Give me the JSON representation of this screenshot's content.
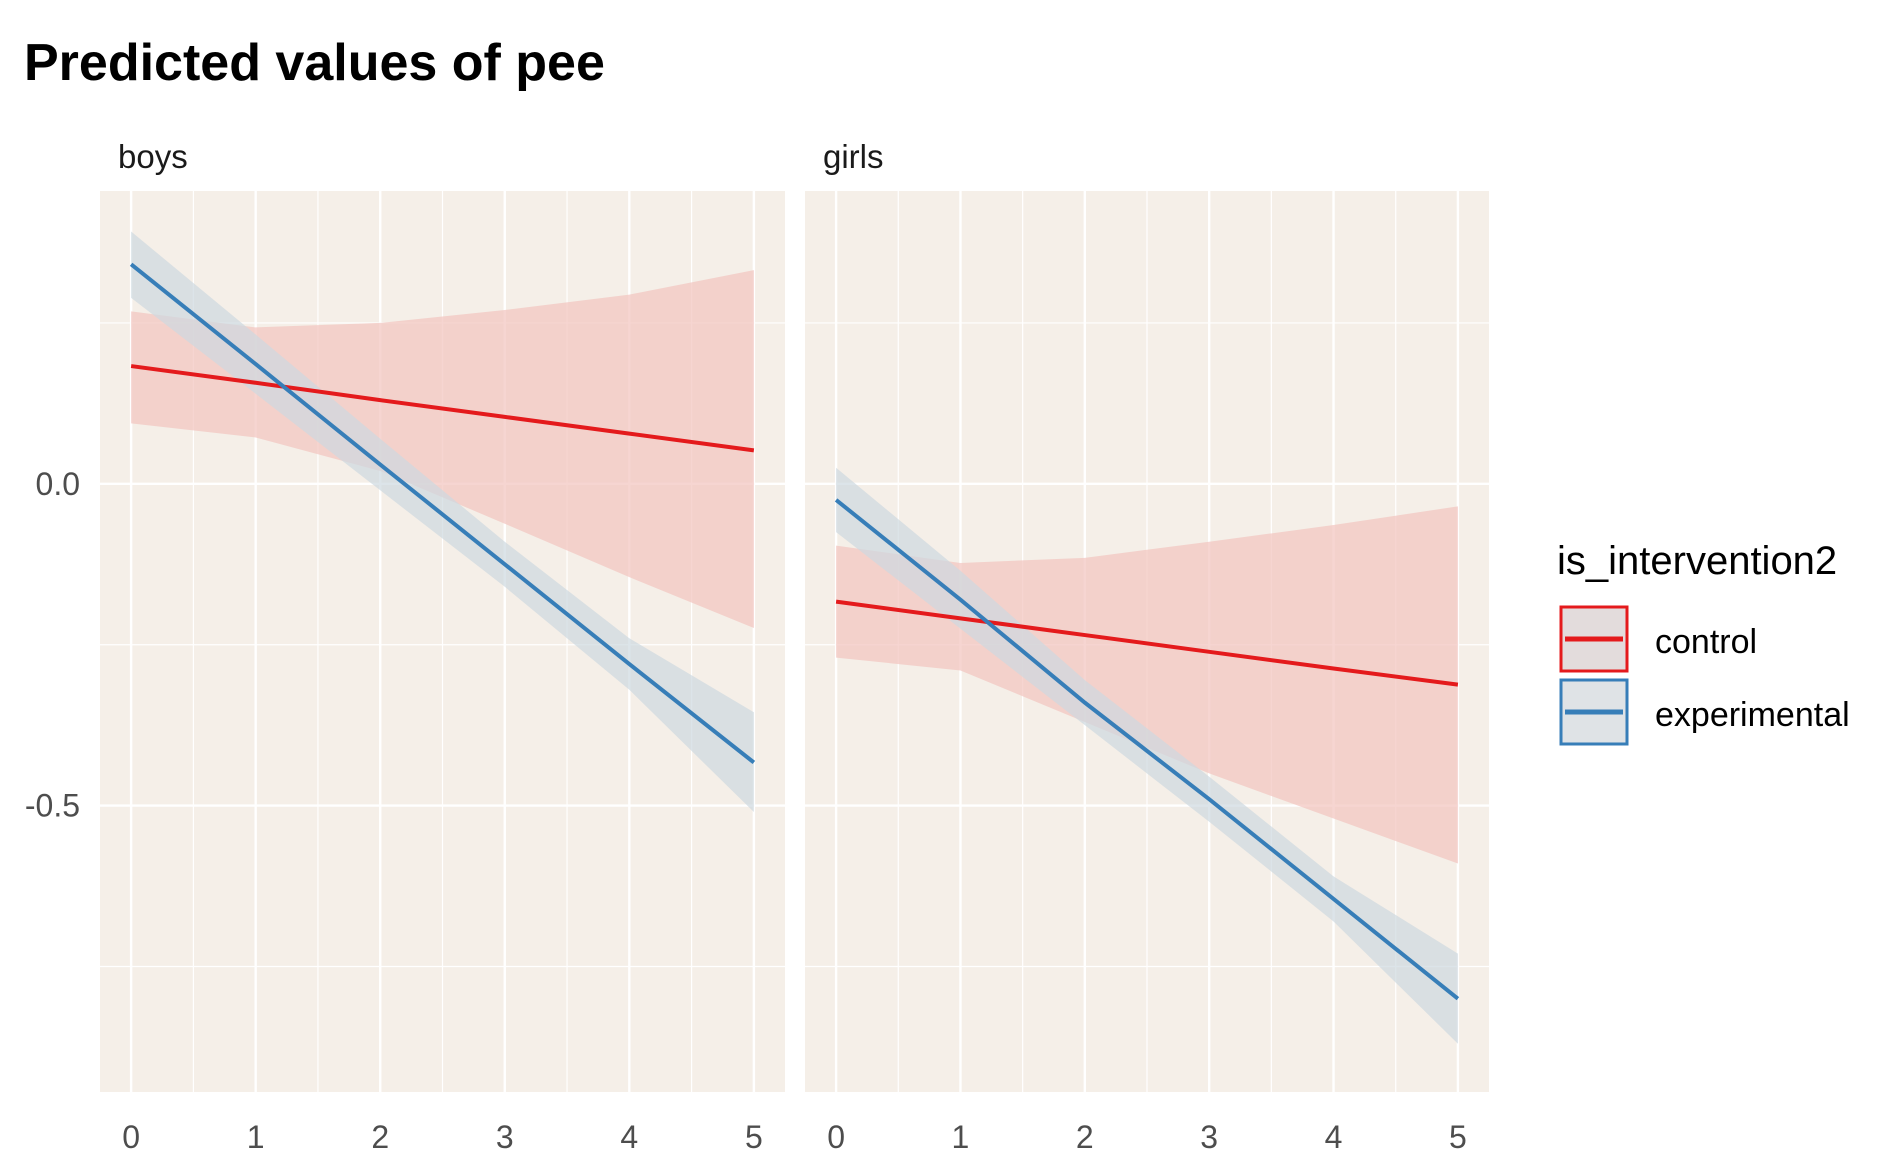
{
  "chart_data": {
    "type": "line",
    "title": "Predicted values of pee",
    "xlabel": "",
    "ylabel": "",
    "xlim": [
      -0.25,
      5.25
    ],
    "ylim": [
      -0.945,
      0.455
    ],
    "x_ticks": [
      0,
      1,
      2,
      3,
      4,
      5
    ],
    "y_ticks": [
      0.0,
      -0.5
    ],
    "y_tick_labels": [
      "0.0",
      "-0.5"
    ],
    "grid": true,
    "panel_background": "#f5efe8",
    "legend": {
      "title": "is_intervention2",
      "placement": "right"
    },
    "x": [
      0,
      1,
      2,
      3,
      4,
      5
    ],
    "facets": [
      {
        "label": "boys",
        "series": [
          {
            "name": "control",
            "color": "#e41a1c",
            "values": [
              0.183,
              0.157,
              0.13,
              0.104,
              0.078,
              0.052
            ],
            "lower": [
              0.094,
              0.072,
              0.02,
              -0.062,
              -0.145,
              -0.224
            ],
            "upper": [
              0.268,
              0.243,
              0.25,
              0.27,
              0.294,
              0.332
            ]
          },
          {
            "name": "experimental",
            "color": "#377eb8",
            "values": [
              0.341,
              0.186,
              0.03,
              -0.125,
              -0.28,
              -0.433
            ],
            "lower": [
              0.289,
              0.14,
              -0.01,
              -0.16,
              -0.32,
              -0.51
            ],
            "upper": [
              0.392,
              0.232,
              0.07,
              -0.09,
              -0.24,
              -0.355
            ]
          }
        ]
      },
      {
        "label": "girls",
        "series": [
          {
            "name": "control",
            "color": "#e41a1c",
            "values": [
              -0.183,
              -0.209,
              -0.235,
              -0.261,
              -0.287,
              -0.312
            ],
            "lower": [
              -0.27,
              -0.29,
              -0.37,
              -0.45,
              -0.52,
              -0.59
            ],
            "upper": [
              -0.096,
              -0.123,
              -0.115,
              -0.09,
              -0.064,
              -0.035
            ]
          },
          {
            "name": "experimental",
            "color": "#377eb8",
            "values": [
              -0.025,
              -0.18,
              -0.34,
              -0.49,
              -0.645,
              -0.8
            ],
            "lower": [
              -0.075,
              -0.225,
              -0.375,
              -0.525,
              -0.68,
              -0.87
            ],
            "upper": [
              0.025,
              -0.135,
              -0.305,
              -0.455,
              -0.61,
              -0.73
            ]
          }
        ]
      }
    ]
  }
}
